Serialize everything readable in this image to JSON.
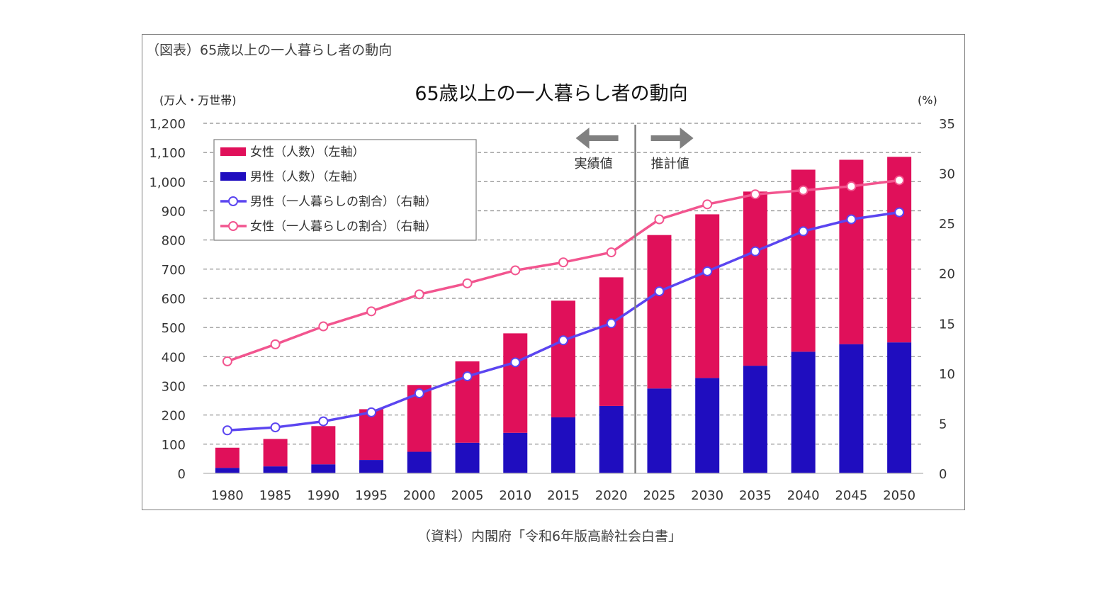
{
  "figure_label": "（図表）65歳以上の一人暮らし者の動向",
  "source": "（資料）内閣府「令和6年版高齢社会白書」",
  "chart_data": {
    "type": "bar",
    "title": "65歳以上の一人暮らし者の動向",
    "y_left_unit": "(万人・万世帯)",
    "y_right_unit": "(%)",
    "ylim_left": [
      0,
      1200
    ],
    "ylim_right": [
      0,
      35
    ],
    "y_left_ticks": [
      "0",
      "100",
      "200",
      "300",
      "400",
      "500",
      "600",
      "700",
      "800",
      "900",
      "1,000",
      "1,100",
      "1,200"
    ],
    "y_right_ticks": [
      "0",
      "5",
      "10",
      "15",
      "20",
      "25",
      "30",
      "35"
    ],
    "categories": [
      "1980",
      "1985",
      "1990",
      "1995",
      "2000",
      "2005",
      "2010",
      "2015",
      "2020",
      "2025",
      "2030",
      "2035",
      "2040",
      "2045",
      "2050"
    ],
    "series": [
      {
        "name": "男性（人数）（左軸）",
        "type": "bar-stack",
        "color": "#1f0dbf",
        "values": [
          19,
          24,
          31,
          46,
          74,
          105,
          139,
          192,
          231,
          291,
          327,
          369,
          417,
          443,
          449
        ]
      },
      {
        "name": "女性（人数）（左軸）",
        "type": "bar-stack",
        "color": "#e0105a",
        "values": [
          69,
          94,
          131,
          174,
          229,
          279,
          341,
          400,
          441,
          526,
          561,
          597,
          624,
          632,
          636
        ]
      },
      {
        "name": "男性（一人暮らしの割合）（右軸）",
        "type": "line",
        "color": "#5b45f0",
        "values": [
          4.3,
          4.6,
          5.2,
          6.1,
          8.0,
          9.7,
          11.1,
          13.3,
          15.0,
          18.2,
          20.2,
          22.2,
          24.2,
          25.4,
          26.1
        ]
      },
      {
        "name": "女性（一人暮らしの割合）（右軸）",
        "type": "line",
        "color": "#f2558f",
        "values": [
          11.2,
          12.9,
          14.7,
          16.2,
          17.9,
          19.0,
          20.3,
          21.1,
          22.1,
          25.4,
          26.9,
          27.9,
          28.3,
          28.7,
          29.3
        ]
      }
    ],
    "annotations": {
      "actual": "実績値",
      "projected": "推計値"
    },
    "divider_between": [
      "2020",
      "2025"
    ]
  }
}
